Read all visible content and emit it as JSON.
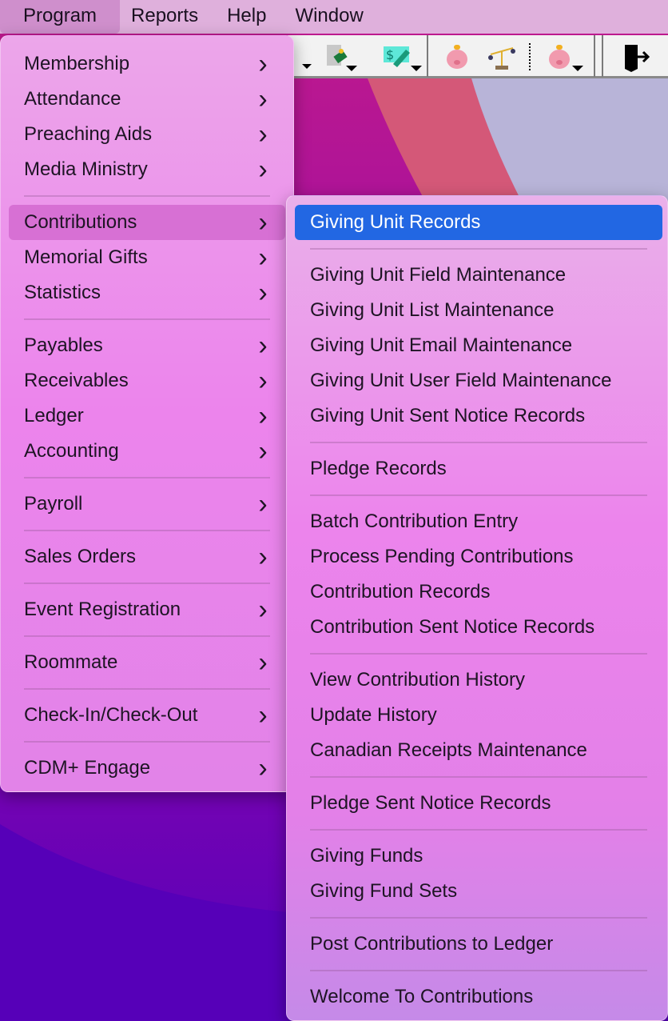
{
  "menubar": {
    "items": [
      "Program",
      "Reports",
      "Help",
      "Window"
    ]
  },
  "toolbar": {
    "icons": [
      "reports-dropdown-icon",
      "contribution-statement-icon",
      "edit-contribution-icon",
      "piggy-bank-icon",
      "scales-icon",
      "piggy-bank-dropdown-icon",
      "exit-icon"
    ]
  },
  "program_menu": {
    "groups": [
      [
        "Membership",
        "Attendance",
        "Preaching Aids",
        "Media Ministry"
      ],
      [
        "Contributions",
        "Memorial Gifts",
        "Statistics"
      ],
      [
        "Payables",
        "Receivables",
        "Ledger",
        "Accounting"
      ],
      [
        "Payroll"
      ],
      [
        "Sales Orders"
      ],
      [
        "Event Registration"
      ],
      [
        "Roommate"
      ],
      [
        "Check-In/Check-Out"
      ],
      [
        "CDM+ Engage"
      ]
    ],
    "selected": "Contributions"
  },
  "contributions_menu": {
    "groups": [
      [
        "Giving Unit Records"
      ],
      [
        "Giving Unit Field Maintenance",
        "Giving Unit List Maintenance",
        "Giving Unit Email Maintenance",
        "Giving Unit User Field Maintenance",
        "Giving Unit Sent Notice Records"
      ],
      [
        "Pledge Records"
      ],
      [
        "Batch Contribution Entry",
        "Process Pending Contributions",
        "Contribution Records",
        "Contribution Sent Notice Records"
      ],
      [
        "View Contribution History",
        "Update History",
        "Canadian Receipts Maintenance"
      ],
      [
        "Pledge Sent Notice Records"
      ],
      [
        "Giving Funds",
        "Giving Fund Sets"
      ],
      [
        "Post Contributions to Ledger"
      ],
      [
        "Welcome To Contributions"
      ]
    ],
    "selected": "Giving Unit Records"
  },
  "colors": {
    "highlight": "#2267e3",
    "menu": "#ec84ec",
    "menubar": "#dfb0dc"
  }
}
